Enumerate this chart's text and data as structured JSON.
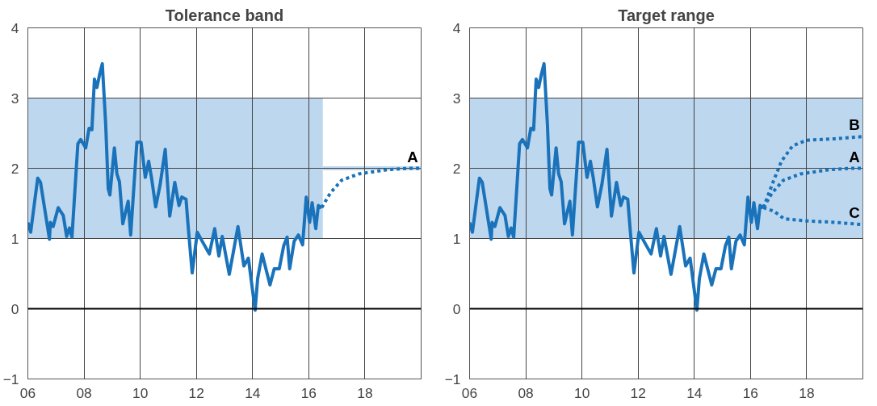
{
  "chart_data": [
    {
      "type": "line",
      "title": "Tolerance band",
      "xlim": [
        2006,
        2020
      ],
      "ylim": [
        -1,
        4
      ],
      "xticks": [
        {
          "value": 2006,
          "label": "06"
        },
        {
          "value": 2008,
          "label": "08"
        },
        {
          "value": 2010,
          "label": "10"
        },
        {
          "value": 2012,
          "label": "12"
        },
        {
          "value": 2014,
          "label": "14"
        },
        {
          "value": 2016,
          "label": "16"
        },
        {
          "value": 2018,
          "label": "18"
        }
      ],
      "yticks": [
        -1,
        0,
        1,
        2,
        3,
        4
      ],
      "grid": true,
      "ref_lines": [
        {
          "axis": "y",
          "value": 0,
          "color": "#000000"
        }
      ],
      "series": [
        {
          "type": "line",
          "color": "#bdd7ee",
          "x": [
            2006,
            2016.5
          ],
          "values": [
            null,
            null
          ],
          "lower": [
            1,
            1
          ],
          "upper": [
            3,
            3
          ]
        },
        {
          "type": "line",
          "color": "#bdd7ee",
          "x": [
            2016.5,
            2020
          ],
          "values": [
            null,
            null
          ],
          "lower": [
            1.97,
            1.97
          ],
          "upper": [
            2.03,
            2.03
          ]
        },
        {
          "color": "#1a73ba",
          "line_style": "solid",
          "x": [
            2006.0,
            2006.1,
            2006.35,
            2006.45,
            2006.77,
            2006.8,
            2006.9,
            2007.08,
            2007.26,
            2007.38,
            2007.48,
            2007.57,
            2007.78,
            2007.88,
            2008.06,
            2008.18,
            2008.28,
            2008.37,
            2008.46,
            2008.55,
            2008.65,
            2008.77,
            2008.86,
            2008.92,
            2009.08,
            2009.17,
            2009.26,
            2009.38,
            2009.57,
            2009.66,
            2009.88,
            2010.03,
            2010.18,
            2010.3,
            2010.4,
            2010.55,
            2010.71,
            2010.89,
            2011.05,
            2011.23,
            2011.38,
            2011.48,
            2011.63,
            2011.72,
            2011.85,
            2012.03,
            2012.25,
            2012.46,
            2012.65,
            2012.8,
            2012.92,
            2013.17,
            2013.48,
            2013.69,
            2013.85,
            2014.09,
            2014.18,
            2014.34,
            2014.62,
            2014.77,
            2014.95,
            2015.11,
            2015.23,
            2015.32,
            2015.48,
            2015.63,
            2015.78,
            2015.91,
            2016.03,
            2016.12,
            2016.25,
            2016.34,
            2016.46
          ],
          "values": [
            1.23,
            1.09,
            1.86,
            1.8,
            0.99,
            1.23,
            1.17,
            1.44,
            1.33,
            1.03,
            1.15,
            1.02,
            2.35,
            2.41,
            2.29,
            2.57,
            2.55,
            3.27,
            3.15,
            3.33,
            3.49,
            2.63,
            1.71,
            1.62,
            2.29,
            1.92,
            1.81,
            1.21,
            1.53,
            1.05,
            2.37,
            2.37,
            1.87,
            2.1,
            1.87,
            1.45,
            1.77,
            2.27,
            1.32,
            1.8,
            1.47,
            1.59,
            1.56,
            1.11,
            0.51,
            1.09,
            0.93,
            0.78,
            1.14,
            0.75,
            1.03,
            0.49,
            1.17,
            0.61,
            0.72,
            -0.02,
            0.43,
            0.78,
            0.34,
            0.57,
            0.57,
            0.9,
            1.02,
            0.57,
            0.96,
            1.05,
            0.91,
            1.59,
            1.23,
            1.51,
            1.14,
            1.47,
            1.44
          ]
        },
        {
          "name": "A",
          "color": "#1a73ba",
          "line_style": "dashed",
          "x": [
            2016.46,
            2016.77,
            2017.17,
            2017.78,
            2018.8,
            2019.57,
            2019.95
          ],
          "values": [
            1.44,
            1.65,
            1.83,
            1.92,
            1.98,
            2.0,
            2.0
          ]
        }
      ]
    },
    {
      "type": "line",
      "title": "Target range",
      "xlim": [
        2006,
        2020
      ],
      "ylim": [
        -1,
        4
      ],
      "xticks": [
        {
          "value": 2006,
          "label": "06"
        },
        {
          "value": 2008,
          "label": "08"
        },
        {
          "value": 2010,
          "label": "10"
        },
        {
          "value": 2012,
          "label": "12"
        },
        {
          "value": 2014,
          "label": "14"
        },
        {
          "value": 2016,
          "label": "16"
        },
        {
          "value": 2018,
          "label": "18"
        }
      ],
      "yticks": [
        -1,
        0,
        1,
        2,
        3,
        4
      ],
      "grid": true,
      "ref_lines": [
        {
          "axis": "y",
          "value": 0,
          "color": "#000000"
        }
      ],
      "bands": [
        {
          "axis": "y",
          "from": 1,
          "to": 3,
          "color": "#bdd7ee"
        }
      ],
      "series": [
        {
          "type": "line",
          "color": "#1a73ba",
          "line_style": "solid",
          "x": [
            2006.0,
            2006.1,
            2006.35,
            2006.45,
            2006.77,
            2006.8,
            2006.9,
            2007.08,
            2007.26,
            2007.38,
            2007.48,
            2007.57,
            2007.78,
            2007.88,
            2008.06,
            2008.18,
            2008.28,
            2008.37,
            2008.46,
            2008.55,
            2008.65,
            2008.77,
            2008.86,
            2008.92,
            2009.08,
            2009.17,
            2009.26,
            2009.38,
            2009.57,
            2009.66,
            2009.88,
            2010.03,
            2010.18,
            2010.3,
            2010.4,
            2010.55,
            2010.71,
            2010.89,
            2011.05,
            2011.23,
            2011.38,
            2011.48,
            2011.63,
            2011.72,
            2011.85,
            2012.03,
            2012.25,
            2012.46,
            2012.65,
            2012.8,
            2012.92,
            2013.17,
            2013.48,
            2013.69,
            2013.85,
            2014.09,
            2014.18,
            2014.34,
            2014.62,
            2014.77,
            2014.95,
            2015.11,
            2015.23,
            2015.32,
            2015.48,
            2015.63,
            2015.78,
            2015.91,
            2016.03,
            2016.12,
            2016.25,
            2016.34,
            2016.46
          ],
          "values": [
            1.23,
            1.09,
            1.86,
            1.8,
            0.99,
            1.23,
            1.17,
            1.44,
            1.33,
            1.03,
            1.15,
            1.02,
            2.35,
            2.41,
            2.29,
            2.57,
            2.55,
            3.27,
            3.15,
            3.33,
            3.49,
            2.63,
            1.71,
            1.62,
            2.29,
            1.92,
            1.81,
            1.21,
            1.53,
            1.05,
            2.37,
            2.37,
            1.87,
            2.1,
            1.87,
            1.45,
            1.77,
            2.27,
            1.32,
            1.8,
            1.47,
            1.59,
            1.56,
            1.11,
            0.51,
            1.09,
            0.93,
            0.78,
            1.14,
            0.75,
            1.03,
            0.49,
            1.17,
            0.61,
            0.72,
            -0.02,
            0.43,
            0.78,
            0.34,
            0.57,
            0.57,
            0.9,
            1.02,
            0.57,
            0.96,
            1.05,
            0.91,
            1.59,
            1.23,
            1.51,
            1.14,
            1.47,
            1.44
          ]
        },
        {
          "name": "B",
          "color": "#1a73ba",
          "line_style": "dashed",
          "x": [
            2016.46,
            2016.8,
            2017.1,
            2017.5,
            2018.0,
            2019.0,
            2019.95
          ],
          "values": [
            1.44,
            1.8,
            2.1,
            2.32,
            2.4,
            2.42,
            2.45
          ]
        },
        {
          "type": "line",
          "name": "A",
          "color": "#1a73ba",
          "line_style": "dashed",
          "x": [
            2016.46,
            2016.77,
            2017.17,
            2017.78,
            2018.8,
            2019.57,
            2019.95
          ],
          "values": [
            1.44,
            1.65,
            1.83,
            1.92,
            1.98,
            2.0,
            2.0
          ]
        },
        {
          "name": "C",
          "color": "#1a73ba",
          "line_style": "dashed",
          "x": [
            2016.46,
            2016.83,
            2017.2,
            2018.0,
            2019.0,
            2019.95
          ],
          "values": [
            1.44,
            1.39,
            1.28,
            1.25,
            1.23,
            1.2
          ]
        }
      ]
    }
  ]
}
